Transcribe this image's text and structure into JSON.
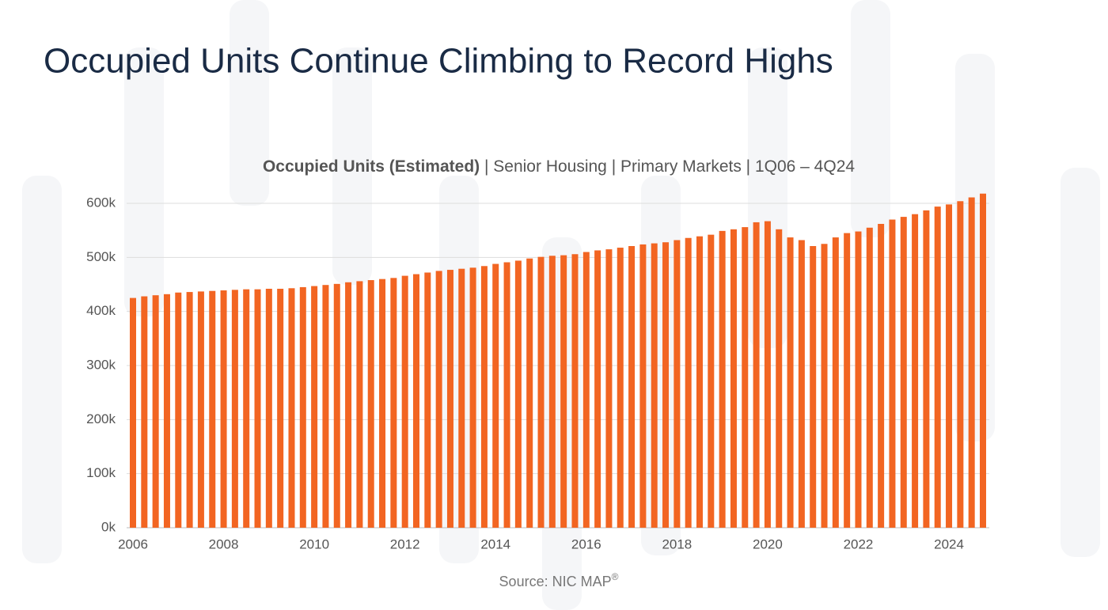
{
  "chart_data": {
    "type": "bar",
    "title": "Occupied Units Continue Climbing to Record Highs",
    "subtitle_bold": "Occupied Units (Estimated)",
    "subtitle_rest": " | Senior Housing | Primary Markets | 1Q06 – 4Q24",
    "source": "Source: NIC MAP",
    "source_mark": "®",
    "color": "#f26522",
    "grid": true,
    "ylim": [
      0,
      620000
    ],
    "yticks": [
      {
        "value": 0,
        "label": "0k"
      },
      {
        "value": 100000,
        "label": "100k"
      },
      {
        "value": 200000,
        "label": "200k"
      },
      {
        "value": 300000,
        "label": "300k"
      },
      {
        "value": 400000,
        "label": "400k"
      },
      {
        "value": 500000,
        "label": "500k"
      },
      {
        "value": 600000,
        "label": "600k"
      }
    ],
    "categories": [
      "2006",
      null,
      null,
      null,
      null,
      null,
      null,
      null,
      "2008",
      null,
      null,
      null,
      null,
      null,
      null,
      null,
      "2010",
      null,
      null,
      null,
      null,
      null,
      null,
      null,
      "2012",
      null,
      null,
      null,
      null,
      null,
      null,
      null,
      "2014",
      null,
      null,
      null,
      null,
      null,
      null,
      null,
      "2016",
      null,
      null,
      null,
      null,
      null,
      null,
      null,
      "2018",
      null,
      null,
      null,
      null,
      null,
      null,
      null,
      "2020",
      null,
      null,
      null,
      null,
      null,
      null,
      null,
      "2022",
      null,
      null,
      null,
      null,
      null,
      null,
      null,
      "2024",
      null,
      null,
      null
    ],
    "values": [
      425000,
      428000,
      430000,
      432000,
      435000,
      436000,
      437000,
      438000,
      439000,
      440000,
      441000,
      441000,
      442000,
      442000,
      443000,
      445000,
      447000,
      449000,
      451000,
      454000,
      456000,
      458000,
      460000,
      462000,
      466000,
      469000,
      472000,
      475000,
      477000,
      479000,
      481000,
      484000,
      488000,
      491000,
      494000,
      498000,
      501000,
      503000,
      504000,
      506000,
      510000,
      513000,
      515000,
      518000,
      521000,
      524000,
      526000,
      528000,
      532000,
      536000,
      539000,
      542000,
      549000,
      552000,
      556000,
      565000,
      567000,
      552000,
      537000,
      532000,
      521000,
      525000,
      537000,
      545000,
      548000,
      555000,
      562000,
      570000,
      575000,
      580000,
      587000,
      594000,
      598000,
      604000,
      611000,
      618000
    ]
  }
}
